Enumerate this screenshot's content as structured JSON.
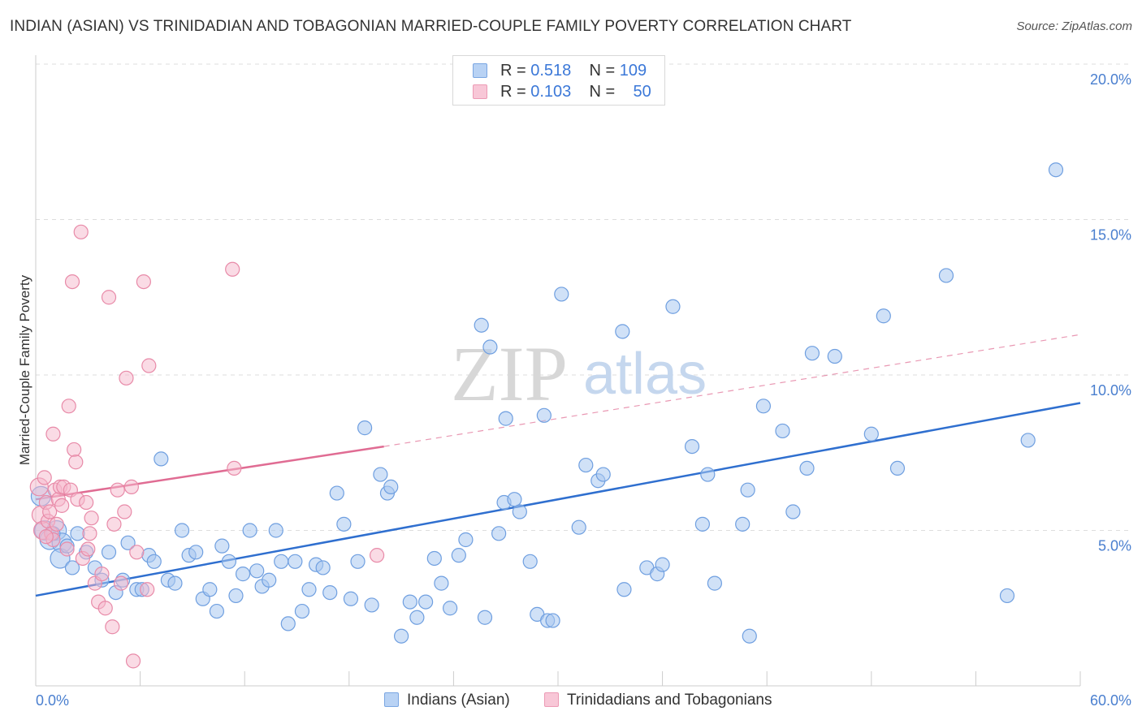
{
  "title": "INDIAN (ASIAN) VS TRINIDADIAN AND TOBAGONIAN MARRIED-COUPLE FAMILY POVERTY CORRELATION CHART",
  "source": "Source: ZipAtlas.com",
  "watermark": {
    "zip": "ZIP",
    "atlas": "atlas"
  },
  "legend": {
    "rows": [
      {
        "r_label": "R =",
        "r_value": "0.518",
        "n_label": "N =",
        "n_value": "109"
      },
      {
        "r_label": "R =",
        "r_value": "0.103",
        "n_label": "N =",
        "n_value": "50"
      }
    ]
  },
  "bottom_legend": {
    "series1": "Indians (Asian)",
    "series2": "Trinidadians and Tobagonians"
  },
  "colors": {
    "blue_fill": "#aac8f0",
    "blue_stroke": "#6f9fe0",
    "blue_line": "#2f6fcf",
    "pink_fill": "#f5b8cc",
    "pink_stroke": "#e88aa8",
    "pink_line": "#e06c93",
    "grid": "#dddddd",
    "tick_text": "#4a7fcf"
  },
  "chart_data": {
    "type": "scatter",
    "title": "INDIAN (ASIAN) VS TRINIDADIAN AND TOBAGONIAN MARRIED-COUPLE FAMILY POVERTY CORRELATION CHART",
    "xlabel": "",
    "ylabel": "Married-Couple Family Poverty",
    "xlim": [
      0,
      60
    ],
    "ylim": [
      0,
      20
    ],
    "x_tick_labels": [
      "0.0%",
      "60.0%"
    ],
    "y_tick_labels": [
      "5.0%",
      "10.0%",
      "15.0%",
      "20.0%"
    ],
    "y_ticks": [
      5,
      10,
      15,
      20
    ],
    "grid": true,
    "series": [
      {
        "name": "Indians (Asian)",
        "R": 0.518,
        "N": 109,
        "trend": {
          "x": [
            0,
            60
          ],
          "y": [
            2.9,
            9.1
          ],
          "style": "solid"
        },
        "points": [
          [
            0.3,
            6.1
          ],
          [
            0.5,
            5.0
          ],
          [
            0.8,
            4.7
          ],
          [
            1.2,
            5.0
          ],
          [
            1.5,
            4.6
          ],
          [
            1.4,
            4.1
          ],
          [
            2.1,
            3.8
          ],
          [
            2.4,
            4.9
          ],
          [
            2.9,
            4.3
          ],
          [
            3.4,
            3.8
          ],
          [
            3.8,
            3.4
          ],
          [
            4.2,
            4.3
          ],
          [
            4.6,
            3.0
          ],
          [
            5.0,
            3.4
          ],
          [
            5.3,
            4.6
          ],
          [
            5.8,
            3.1
          ],
          [
            6.1,
            3.1
          ],
          [
            6.5,
            4.2
          ],
          [
            6.8,
            4.0
          ],
          [
            7.2,
            7.3
          ],
          [
            7.6,
            3.4
          ],
          [
            8.0,
            3.3
          ],
          [
            8.4,
            5.0
          ],
          [
            8.8,
            4.2
          ],
          [
            9.2,
            4.3
          ],
          [
            9.6,
            2.8
          ],
          [
            10.0,
            3.1
          ],
          [
            10.4,
            2.4
          ],
          [
            10.7,
            4.5
          ],
          [
            11.1,
            4.0
          ],
          [
            11.5,
            2.9
          ],
          [
            11.9,
            3.6
          ],
          [
            12.3,
            5.0
          ],
          [
            12.7,
            3.7
          ],
          [
            13.0,
            3.2
          ],
          [
            13.4,
            3.4
          ],
          [
            13.8,
            5.0
          ],
          [
            14.1,
            4.0
          ],
          [
            14.5,
            2.0
          ],
          [
            14.9,
            4.0
          ],
          [
            15.3,
            2.4
          ],
          [
            15.7,
            3.1
          ],
          [
            16.1,
            3.9
          ],
          [
            16.5,
            3.8
          ],
          [
            16.9,
            3.0
          ],
          [
            17.3,
            6.2
          ],
          [
            17.7,
            5.2
          ],
          [
            18.1,
            2.8
          ],
          [
            18.5,
            4.0
          ],
          [
            18.9,
            8.3
          ],
          [
            19.3,
            2.6
          ],
          [
            19.8,
            6.8
          ],
          [
            20.2,
            6.2
          ],
          [
            20.4,
            6.4
          ],
          [
            21.0,
            1.6
          ],
          [
            21.5,
            2.7
          ],
          [
            21.9,
            2.2
          ],
          [
            22.4,
            2.7
          ],
          [
            22.9,
            4.1
          ],
          [
            23.3,
            3.3
          ],
          [
            23.8,
            2.5
          ],
          [
            24.3,
            4.2
          ],
          [
            24.7,
            4.7
          ],
          [
            25.6,
            11.6
          ],
          [
            25.8,
            2.2
          ],
          [
            26.1,
            10.9
          ],
          [
            26.6,
            4.9
          ],
          [
            26.9,
            5.9
          ],
          [
            27.0,
            8.6
          ],
          [
            27.5,
            6.0
          ],
          [
            27.8,
            5.6
          ],
          [
            28.4,
            4.0
          ],
          [
            28.8,
            2.3
          ],
          [
            29.2,
            8.7
          ],
          [
            29.4,
            2.1
          ],
          [
            29.7,
            2.1
          ],
          [
            30.2,
            12.6
          ],
          [
            31.2,
            5.1
          ],
          [
            31.6,
            7.1
          ],
          [
            32.3,
            6.6
          ],
          [
            32.6,
            6.8
          ],
          [
            33.7,
            11.4
          ],
          [
            33.8,
            3.1
          ],
          [
            35.1,
            3.8
          ],
          [
            35.7,
            3.6
          ],
          [
            36.0,
            3.9
          ],
          [
            36.6,
            12.2
          ],
          [
            37.7,
            7.7
          ],
          [
            38.3,
            5.2
          ],
          [
            38.6,
            6.8
          ],
          [
            39.0,
            3.3
          ],
          [
            40.6,
            5.2
          ],
          [
            40.9,
            6.3
          ],
          [
            41.0,
            1.6
          ],
          [
            41.8,
            9.0
          ],
          [
            42.9,
            8.2
          ],
          [
            43.5,
            5.6
          ],
          [
            44.3,
            7.0
          ],
          [
            44.6,
            10.7
          ],
          [
            45.9,
            10.6
          ],
          [
            48.0,
            8.1
          ],
          [
            48.7,
            11.9
          ],
          [
            49.5,
            7.0
          ],
          [
            52.3,
            13.2
          ],
          [
            55.8,
            2.9
          ],
          [
            57.0,
            7.9
          ],
          [
            58.6,
            16.6
          ],
          [
            1.0,
            4.9
          ],
          [
            1.8,
            4.5
          ]
        ]
      },
      {
        "name": "Trinidadians and Tobagonians",
        "R": 0.103,
        "N": 50,
        "trend": {
          "x": [
            0,
            20
          ],
          "y": [
            6.0,
            7.7
          ],
          "extended_to": [
            60,
            11.3
          ],
          "style": "solid-then-dashed"
        },
        "points": [
          [
            0.2,
            6.4
          ],
          [
            0.3,
            5.5
          ],
          [
            0.4,
            5.0
          ],
          [
            0.5,
            6.7
          ],
          [
            0.6,
            5.9
          ],
          [
            0.7,
            5.3
          ],
          [
            0.8,
            5.6
          ],
          [
            0.9,
            4.9
          ],
          [
            1.0,
            4.7
          ],
          [
            1.0,
            8.1
          ],
          [
            1.1,
            6.3
          ],
          [
            1.2,
            5.2
          ],
          [
            1.3,
            6.0
          ],
          [
            1.4,
            6.4
          ],
          [
            1.5,
            5.8
          ],
          [
            1.6,
            6.4
          ],
          [
            1.8,
            4.4
          ],
          [
            1.9,
            9.0
          ],
          [
            2.0,
            6.3
          ],
          [
            2.1,
            13.0
          ],
          [
            2.2,
            7.6
          ],
          [
            2.3,
            7.2
          ],
          [
            2.4,
            6.0
          ],
          [
            2.6,
            14.6
          ],
          [
            2.7,
            4.1
          ],
          [
            2.9,
            5.9
          ],
          [
            3.0,
            4.4
          ],
          [
            3.1,
            4.9
          ],
          [
            3.2,
            5.4
          ],
          [
            3.4,
            3.3
          ],
          [
            3.6,
            2.7
          ],
          [
            3.8,
            3.6
          ],
          [
            4.0,
            2.5
          ],
          [
            4.2,
            12.5
          ],
          [
            4.4,
            1.9
          ],
          [
            4.5,
            5.2
          ],
          [
            4.7,
            6.3
          ],
          [
            4.9,
            3.3
          ],
          [
            5.1,
            5.6
          ],
          [
            5.2,
            9.9
          ],
          [
            5.5,
            6.4
          ],
          [
            5.6,
            0.8
          ],
          [
            5.8,
            4.3
          ],
          [
            6.2,
            13.0
          ],
          [
            6.4,
            3.1
          ],
          [
            6.5,
            10.3
          ],
          [
            11.3,
            13.4
          ],
          [
            11.4,
            7.0
          ],
          [
            19.6,
            4.2
          ],
          [
            0.6,
            4.8
          ]
        ]
      }
    ]
  }
}
